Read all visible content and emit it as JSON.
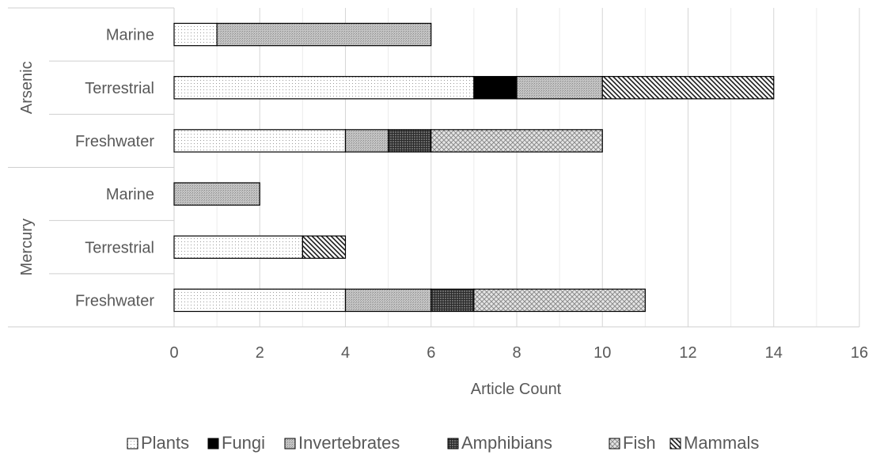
{
  "chart_data": {
    "type": "bar",
    "orientation": "horizontal",
    "stacked": true,
    "xlabel": "Article Count",
    "xlim": [
      0,
      16
    ],
    "x_ticks": [
      0,
      2,
      4,
      6,
      8,
      10,
      12,
      14,
      16
    ],
    "grid": true,
    "legend_position": "bottom",
    "groups": [
      {
        "name": "Arsenic",
        "categories": [
          "Marine",
          "Terrestrial",
          "Freshwater"
        ]
      },
      {
        "name": "Mercury",
        "categories": [
          "Marine",
          "Terrestrial",
          "Freshwater"
        ]
      }
    ],
    "series": [
      {
        "name": "Plants",
        "pattern": "dots",
        "values": [
          1,
          7,
          4,
          0,
          3,
          4
        ]
      },
      {
        "name": "Fungi",
        "pattern": "solid-black",
        "values": [
          0,
          1,
          0,
          0,
          0,
          0
        ]
      },
      {
        "name": "Invertebrates",
        "pattern": "fine-grey",
        "values": [
          5,
          2,
          1,
          2,
          0,
          2
        ]
      },
      {
        "name": "Amphibians",
        "pattern": "dark-grid",
        "values": [
          0,
          0,
          1,
          0,
          0,
          1
        ]
      },
      {
        "name": "Fish",
        "pattern": "crosshatch",
        "values": [
          0,
          0,
          4,
          0,
          0,
          4
        ]
      },
      {
        "name": "Mammals",
        "pattern": "diagonal",
        "values": [
          0,
          4,
          0,
          0,
          1,
          0
        ]
      }
    ]
  }
}
